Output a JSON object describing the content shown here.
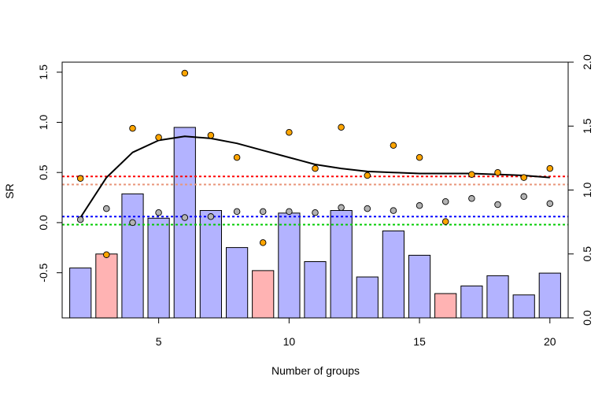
{
  "chart_data": {
    "type": "bar",
    "xlabel": "Number of groups",
    "ylabel": "SR",
    "xlim": [
      1.3,
      20.7
    ],
    "ylim_left": [
      -0.95,
      1.6
    ],
    "ylim_right": [
      0.0,
      2.0
    ],
    "x_ticks": [
      5,
      10,
      15,
      20
    ],
    "y_ticks_left": [
      -0.5,
      0.0,
      0.5,
      1.0,
      1.5
    ],
    "y_ticks_left_labels": [
      "-0.5",
      "0.0",
      "0.5",
      "1.0",
      "1.5"
    ],
    "y_ticks_right": [
      0.0,
      0.5,
      1.0,
      1.5,
      2.0
    ],
    "y_ticks_right_labels": [
      "0.0",
      "0.5",
      "1.0",
      "1.5",
      "2.0"
    ],
    "grid": false,
    "bars": {
      "axis": "right",
      "x": [
        2,
        3,
        4,
        5,
        6,
        7,
        8,
        9,
        10,
        11,
        12,
        13,
        14,
        15,
        16,
        17,
        18,
        19,
        20
      ],
      "values": [
        0.39,
        0.5,
        0.97,
        0.78,
        1.49,
        0.84,
        0.55,
        0.37,
        0.82,
        0.44,
        0.84,
        0.32,
        0.68,
        0.49,
        0.19,
        0.25,
        0.33,
        0.18,
        0.35
      ],
      "colors": [
        "#b3b3ff",
        "#ffb3b3",
        "#b3b3ff",
        "#b3b3ff",
        "#b3b3ff",
        "#b3b3ff",
        "#b3b3ff",
        "#ffb3b3",
        "#b3b3ff",
        "#b3b3ff",
        "#b3b3ff",
        "#b3b3ff",
        "#b3b3ff",
        "#b3b3ff",
        "#ffb3b3",
        "#b3b3ff",
        "#b3b3ff",
        "#b3b3ff",
        "#b3b3ff"
      ]
    },
    "orange_points": {
      "color": "#ffa500",
      "x": [
        2,
        3,
        4,
        5,
        6,
        7,
        8,
        9,
        10,
        11,
        12,
        13,
        14,
        15,
        16,
        17,
        18,
        19,
        20
      ],
      "values": [
        0.44,
        -0.32,
        0.94,
        0.85,
        1.49,
        0.87,
        0.65,
        -0.2,
        0.9,
        0.54,
        0.95,
        0.47,
        0.77,
        0.65,
        0.01,
        0.48,
        0.5,
        0.45,
        0.54
      ]
    },
    "gray_points": {
      "color": "#b3b3b3",
      "x": [
        2,
        3,
        4,
        5,
        6,
        7,
        8,
        9,
        10,
        11,
        12,
        13,
        14,
        15,
        16,
        17,
        18,
        19,
        20
      ],
      "values": [
        0.03,
        0.14,
        0.0,
        0.1,
        0.05,
        0.06,
        0.11,
        0.11,
        0.11,
        0.1,
        0.15,
        0.14,
        0.12,
        0.17,
        0.21,
        0.24,
        0.18,
        0.26,
        0.19
      ]
    },
    "smooth_line": {
      "color": "#000000",
      "x": [
        2,
        3,
        4,
        5,
        6,
        7,
        8,
        9,
        10,
        11,
        12,
        13,
        14,
        15,
        16,
        17,
        18,
        19,
        20
      ],
      "values": [
        0.05,
        0.45,
        0.7,
        0.82,
        0.86,
        0.84,
        0.79,
        0.72,
        0.65,
        0.58,
        0.54,
        0.51,
        0.5,
        0.49,
        0.49,
        0.49,
        0.48,
        0.47,
        0.45
      ]
    },
    "hlines": [
      {
        "value": 0.46,
        "color": "#ff0000"
      },
      {
        "value": 0.38,
        "color": "#e9967a"
      },
      {
        "value": 0.06,
        "color": "#0000ff"
      },
      {
        "value": -0.02,
        "color": "#00cc00"
      }
    ]
  }
}
